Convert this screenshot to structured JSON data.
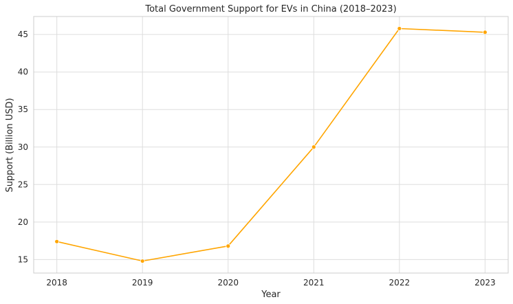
{
  "chart_data": {
    "type": "line",
    "title": "Total Government Support for EVs in China (2018–2023)",
    "xlabel": "Year",
    "ylabel": "Support (Billion USD)",
    "x": [
      2018,
      2019,
      2020,
      2021,
      2022,
      2023
    ],
    "series": [
      {
        "values": [
          17.4,
          14.8,
          16.8,
          30.0,
          45.8,
          45.3
        ],
        "color": "#FFA500"
      }
    ],
    "xticks": [
      "2018",
      "2019",
      "2020",
      "2021",
      "2022",
      "2023"
    ],
    "yticks": [
      "15",
      "20",
      "25",
      "30",
      "35",
      "40",
      "45"
    ],
    "xlim": [
      2017.73,
      2023.27
    ],
    "ylim": [
      13.2,
      47.4
    ],
    "grid": true,
    "marker": "circle"
  }
}
